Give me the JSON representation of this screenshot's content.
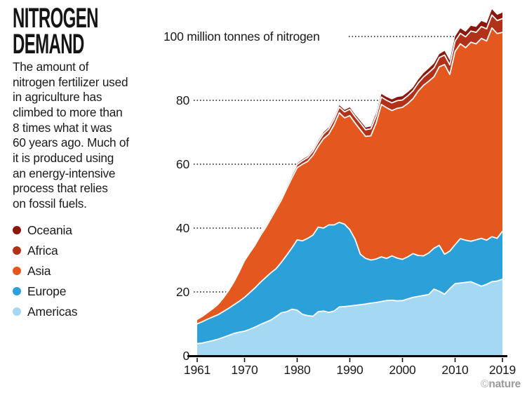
{
  "header": {
    "title_line1": "NITROGEN",
    "title_line2": "DEMAND"
  },
  "description": {
    "lines": [
      "The amount of",
      "nitrogen fertilizer used",
      "in agriculture has",
      "climbed to more than",
      "8 times what it was",
      "60 years ago. Much of",
      "it is produced using",
      "an energy-intensive",
      "process that relies",
      "on fossil fuels."
    ]
  },
  "legend": {
    "items": [
      {
        "label": "Oceania",
        "color": "#8C170C"
      },
      {
        "label": "Africa",
        "color": "#B23119"
      },
      {
        "label": "Asia",
        "color": "#E4571E"
      },
      {
        "label": "Europe",
        "color": "#2BA0D9"
      },
      {
        "label": "Americas",
        "color": "#A5D8F3"
      }
    ]
  },
  "watermark": {
    "copyright": "©",
    "brand": "nature"
  },
  "chart_data": {
    "type": "area",
    "stacked": true,
    "title": "Nitrogen demand",
    "unit_label": "million tonnes of nitrogen",
    "x": [
      1961,
      1962,
      1963,
      1964,
      1965,
      1966,
      1967,
      1968,
      1969,
      1970,
      1971,
      1972,
      1973,
      1974,
      1975,
      1976,
      1977,
      1978,
      1979,
      1980,
      1981,
      1982,
      1983,
      1984,
      1985,
      1986,
      1987,
      1988,
      1989,
      1990,
      1991,
      1992,
      1993,
      1994,
      1995,
      1996,
      1997,
      1998,
      1999,
      2000,
      2001,
      2002,
      2003,
      2004,
      2005,
      2006,
      2007,
      2008,
      2009,
      2010,
      2011,
      2012,
      2013,
      2014,
      2015,
      2016,
      2017,
      2018,
      2019
    ],
    "x_ticks": [
      1961,
      1970,
      1980,
      1990,
      2000,
      2010,
      2019
    ],
    "y_ticks": [
      0,
      20,
      40,
      60,
      80
    ],
    "top_tick": 100,
    "ylim": [
      0,
      112
    ],
    "grid": "dotted-leader-lines",
    "legend_position": "left",
    "series": [
      {
        "name": "Americas",
        "color": "#A5D8F3",
        "values": [
          3.8,
          4.0,
          4.4,
          4.8,
          5.2,
          5.8,
          6.4,
          7.0,
          7.4,
          7.7,
          8.3,
          9.0,
          9.8,
          10.5,
          11.2,
          12.3,
          13.5,
          13.8,
          14.6,
          14.3,
          13.0,
          12.6,
          12.4,
          13.8,
          14.0,
          13.6,
          14.0,
          15.3,
          15.4,
          15.6,
          15.8,
          16.0,
          16.2,
          16.5,
          16.7,
          17.0,
          17.3,
          17.4,
          17.2,
          17.3,
          17.8,
          18.3,
          18.6,
          18.9,
          19.2,
          20.9,
          20.2,
          19.3,
          21.0,
          22.6,
          22.8,
          23.0,
          23.2,
          22.5,
          21.8,
          22.4,
          23.2,
          23.4,
          24.0
        ]
      },
      {
        "name": "Europe",
        "color": "#2BA0D9",
        "values": [
          6.2,
          6.7,
          7.1,
          7.4,
          7.7,
          8.1,
          8.5,
          9.0,
          9.7,
          10.6,
          11.5,
          12.3,
          13.2,
          14.0,
          14.8,
          15.0,
          15.8,
          17.7,
          19.2,
          22.0,
          23.0,
          24.2,
          25.4,
          26.5,
          26.0,
          27.4,
          27.0,
          26.5,
          25.8,
          23.9,
          20.7,
          15.8,
          14.3,
          13.5,
          13.6,
          14.0,
          13.2,
          13.9,
          13.4,
          12.9,
          13.2,
          13.7,
          12.8,
          12.4,
          13.0,
          12.8,
          14.4,
          12.5,
          11.8,
          12.2,
          13.9,
          13.2,
          12.7,
          13.8,
          15.0,
          13.8,
          14.1,
          13.4,
          15.0
        ]
      },
      {
        "name": "Asia",
        "color": "#E4571E",
        "values": [
          1.4,
          1.7,
          2.1,
          2.6,
          3.3,
          4.3,
          5.6,
          7.2,
          9.3,
          11.5,
          12.5,
          13.4,
          14.6,
          15.6,
          17.0,
          18.6,
          19.5,
          20.8,
          21.9,
          22.6,
          24.0,
          24.1,
          25.0,
          25.3,
          28.0,
          28.4,
          31.3,
          34.3,
          33.3,
          35.7,
          36.4,
          39.0,
          38.2,
          38.9,
          42.6,
          47.7,
          47.2,
          45.5,
          46.9,
          47.6,
          48.0,
          48.5,
          51.5,
          53.4,
          53.8,
          53.7,
          55.9,
          59.4,
          55.3,
          60.5,
          61.0,
          60.3,
          62.3,
          61.4,
          62.6,
          62.4,
          65.4,
          64.1,
          62.3
        ]
      },
      {
        "name": "Africa",
        "color": "#B23119",
        "values": [
          0.2,
          0.22,
          0.25,
          0.28,
          0.32,
          0.36,
          0.4,
          0.45,
          0.5,
          0.55,
          0.6,
          0.65,
          0.7,
          0.75,
          0.8,
          0.85,
          0.9,
          0.95,
          1.0,
          1.05,
          1.1,
          1.2,
          1.3,
          1.4,
          1.5,
          1.6,
          1.7,
          1.8,
          1.9,
          2.0,
          2.0,
          2.1,
          2.1,
          2.2,
          2.2,
          2.3,
          2.3,
          2.4,
          2.4,
          2.3,
          2.4,
          2.5,
          2.5,
          2.6,
          2.7,
          2.8,
          2.9,
          3.0,
          3.0,
          3.2,
          3.3,
          3.4,
          3.5,
          3.6,
          3.7,
          3.8,
          4.0,
          4.1,
          4.3
        ]
      },
      {
        "name": "Oceania",
        "color": "#8C170C",
        "values": [
          0.08,
          0.08,
          0.09,
          0.09,
          0.1,
          0.1,
          0.11,
          0.12,
          0.13,
          0.14,
          0.15,
          0.16,
          0.18,
          0.2,
          0.22,
          0.24,
          0.26,
          0.28,
          0.31,
          0.35,
          0.38,
          0.4,
          0.43,
          0.46,
          0.5,
          0.52,
          0.55,
          0.58,
          0.6,
          0.6,
          0.62,
          0.65,
          0.7,
          0.75,
          0.9,
          1.0,
          1.05,
          1.1,
          1.15,
          1.2,
          1.15,
          1.0,
          1.1,
          1.2,
          1.3,
          1.35,
          1.1,
          1.3,
          1.4,
          1.5,
          1.55,
          1.6,
          1.65,
          1.7,
          1.75,
          1.8,
          1.85,
          1.8,
          1.9
        ]
      }
    ]
  }
}
